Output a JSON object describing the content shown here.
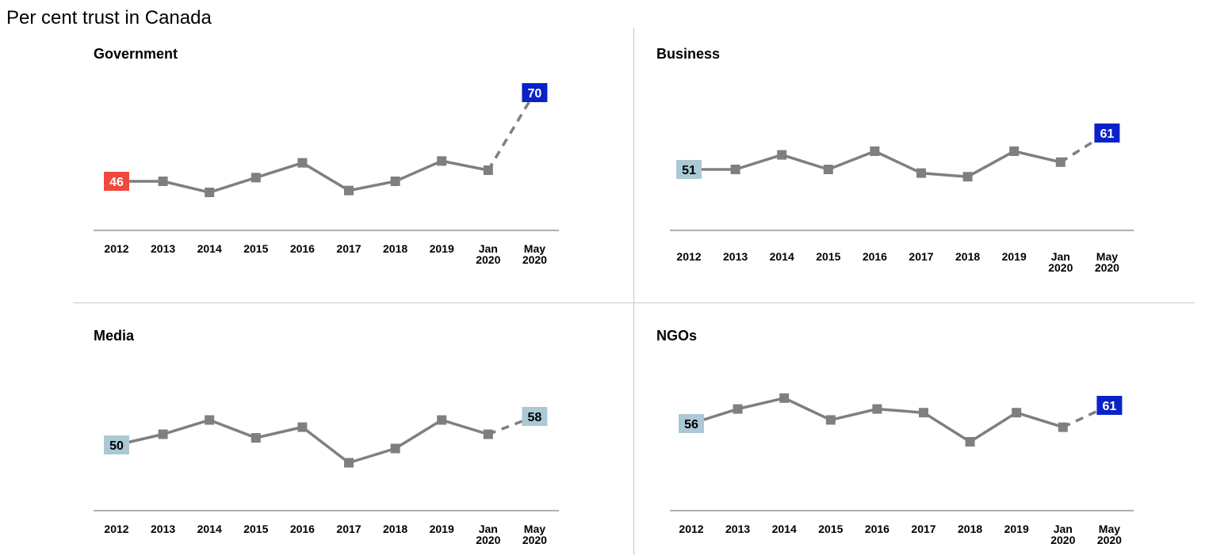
{
  "title": "Per cent trust in Canada",
  "colors": {
    "line": "#7f7f7f",
    "highlight_blue": "#0a23c8",
    "highlight_red": "#f04a3c",
    "neutral_light": "#abc8d5"
  },
  "chart_data": [
    {
      "type": "line",
      "title": "Government",
      "categories": [
        "2012",
        "2013",
        "2014",
        "2015",
        "2016",
        "2017",
        "2018",
        "2019",
        "Jan 2020",
        "May 2020"
      ],
      "values": [
        46,
        46,
        43,
        47,
        51,
        43.5,
        46,
        51.5,
        49,
        70
      ],
      "dashed_last_segment": true,
      "labels": [
        {
          "index": 0,
          "text": "46",
          "style": "red"
        },
        {
          "index": 9,
          "text": "70",
          "style": "blue"
        }
      ]
    },
    {
      "type": "line",
      "title": "Business",
      "categories": [
        "2012",
        "2013",
        "2014",
        "2015",
        "2016",
        "2017",
        "2018",
        "2019",
        "Jan 2020",
        "May 2020"
      ],
      "values": [
        51,
        51,
        55,
        51,
        56,
        50,
        49,
        56,
        53,
        61
      ],
      "dashed_last_segment": true,
      "labels": [
        {
          "index": 0,
          "text": "51",
          "style": "light"
        },
        {
          "index": 9,
          "text": "61",
          "style": "blue"
        }
      ]
    },
    {
      "type": "line",
      "title": "Media",
      "categories": [
        "2012",
        "2013",
        "2014",
        "2015",
        "2016",
        "2017",
        "2018",
        "2019",
        "Jan 2020",
        "May 2020"
      ],
      "values": [
        50,
        53,
        57,
        52,
        55,
        45,
        49,
        57,
        53,
        58
      ],
      "dashed_last_segment": true,
      "labels": [
        {
          "index": 0,
          "text": "50",
          "style": "light"
        },
        {
          "index": 9,
          "text": "58",
          "style": "light"
        }
      ]
    },
    {
      "type": "line",
      "title": "NGOs",
      "categories": [
        "2012",
        "2013",
        "2014",
        "2015",
        "2016",
        "2017",
        "2018",
        "2019",
        "Jan 2020",
        "May 2020"
      ],
      "values": [
        56,
        60,
        63,
        57,
        60,
        59,
        51,
        59,
        55,
        61
      ],
      "dashed_last_segment": true,
      "labels": [
        {
          "index": 0,
          "text": "56",
          "style": "light"
        },
        {
          "index": 9,
          "text": "61",
          "style": "blue"
        }
      ]
    }
  ]
}
